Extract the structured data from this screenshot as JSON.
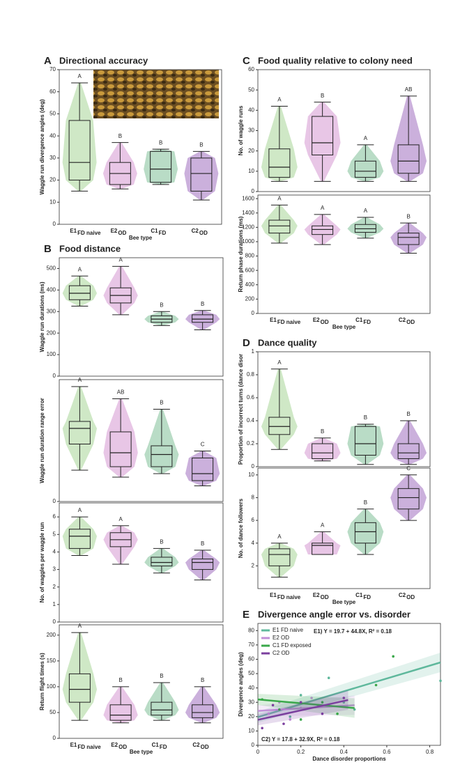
{
  "chart_data": [
    {
      "type": "violin",
      "panel": "A",
      "title": "Directional accuracy",
      "y_label": "Waggle run divergence angles (deg)",
      "x_label": "Bee type",
      "categories": [
        "E1",
        "E2",
        "C1",
        "C2"
      ],
      "category_subscripts": [
        "FD naive",
        "OD",
        "FD",
        "OD"
      ],
      "colors": [
        "#cfe8c6",
        "#e8c6e6",
        "#b9dcc6",
        "#cbb0dc"
      ],
      "ylim": [
        0,
        70
      ],
      "yticks": [
        0,
        10,
        20,
        30,
        40,
        50,
        60,
        70
      ],
      "groups": [
        {
          "min": 15,
          "q1": 20,
          "median": 28,
          "q3": 47,
          "max": 64,
          "letter": "A"
        },
        {
          "min": 16,
          "q1": 18,
          "median": 23,
          "q3": 28,
          "max": 37,
          "letter": "B"
        },
        {
          "min": 18,
          "q1": 19,
          "median": 25,
          "q3": 33,
          "max": 34,
          "letter": "B"
        },
        {
          "min": 11,
          "q1": 15,
          "median": 23,
          "q3": 30,
          "max": 33,
          "letter": "B"
        }
      ]
    },
    {
      "type": "violin",
      "panel": "B",
      "title": "Food distance",
      "y_label": "Waggle run durations (ms)",
      "colors": [
        "#cfe8c6",
        "#e8c6e6",
        "#b9dcc6",
        "#cbb0dc"
      ],
      "ylim": [
        0,
        550
      ],
      "yticks": [
        0,
        100,
        200,
        300,
        400,
        500
      ],
      "groups": [
        {
          "min": 325,
          "q1": 355,
          "median": 385,
          "q3": 420,
          "max": 465,
          "letter": "A"
        },
        {
          "min": 285,
          "q1": 340,
          "median": 375,
          "q3": 410,
          "max": 510,
          "letter": "A"
        },
        {
          "min": 235,
          "q1": 250,
          "median": 265,
          "q3": 280,
          "max": 300,
          "letter": "B"
        },
        {
          "min": 215,
          "q1": 250,
          "median": 265,
          "q3": 285,
          "max": 305,
          "letter": "B"
        }
      ]
    },
    {
      "type": "violin",
      "y_label": "Waggle run duration range error",
      "colors": [
        "#cfe8c6",
        "#e8c6e6",
        "#b9dcc6",
        "#cbb0dc"
      ],
      "ylim": [
        0,
        350
      ],
      "yticks": [
        0
      ],
      "groups": [
        {
          "min": 90,
          "q1": 165,
          "median": 210,
          "q3": 230,
          "max": 330,
          "letter": "A"
        },
        {
          "min": 70,
          "q1": 100,
          "median": 140,
          "q3": 200,
          "max": 295,
          "letter": "AB"
        },
        {
          "min": 80,
          "q1": 100,
          "median": 135,
          "q3": 160,
          "max": 265,
          "letter": "B"
        },
        {
          "min": 45,
          "q1": 60,
          "median": 80,
          "q3": 125,
          "max": 145,
          "letter": "C"
        }
      ]
    },
    {
      "type": "violin",
      "y_label": "No. of waggles per waggle run",
      "colors": [
        "#cfe8c6",
        "#e8c6e6",
        "#b9dcc6",
        "#cbb0dc"
      ],
      "ylim": [
        0,
        6.8
      ],
      "yticks": [
        0,
        1,
        2,
        3,
        4,
        5,
        6
      ],
      "groups": [
        {
          "min": 3.8,
          "q1": 4.2,
          "median": 4.9,
          "q3": 5.3,
          "max": 6.0,
          "letter": "A"
        },
        {
          "min": 3.3,
          "q1": 4.3,
          "median": 4.7,
          "q3": 5.1,
          "max": 5.5,
          "letter": "A"
        },
        {
          "min": 2.8,
          "q1": 3.2,
          "median": 3.4,
          "q3": 3.7,
          "max": 4.2,
          "letter": "B"
        },
        {
          "min": 2.4,
          "q1": 3.0,
          "median": 3.4,
          "q3": 3.6,
          "max": 4.1,
          "letter": "B"
        }
      ]
    },
    {
      "type": "violin",
      "y_label": "Return flight times (s)",
      "x_label": "Bee type",
      "categories": [
        "E1",
        "E2",
        "C1",
        "C2"
      ],
      "category_subscripts": [
        "FD naive",
        "OD",
        "FD",
        "OD"
      ],
      "colors": [
        "#cfe8c6",
        "#e8c6e6",
        "#b9dcc6",
        "#cbb0dc"
      ],
      "ylim": [
        0,
        220
      ],
      "yticks": [
        0,
        50,
        100,
        150,
        200
      ],
      "groups": [
        {
          "min": 35,
          "q1": 70,
          "median": 95,
          "q3": 125,
          "max": 205,
          "letter": "A"
        },
        {
          "min": 30,
          "q1": 35,
          "median": 45,
          "q3": 65,
          "max": 100,
          "letter": "B"
        },
        {
          "min": 35,
          "q1": 45,
          "median": 55,
          "q3": 70,
          "max": 108,
          "letter": "B"
        },
        {
          "min": 30,
          "q1": 40,
          "median": 50,
          "q3": 65,
          "max": 100,
          "letter": "B"
        }
      ]
    },
    {
      "type": "violin",
      "panel": "C",
      "title": "Food quality relative to colony need",
      "y_label": "No. of waggle runs",
      "colors": [
        "#cfe8c6",
        "#e8c6e6",
        "#b9dcc6",
        "#cbb0dc"
      ],
      "ylim": [
        0,
        60
      ],
      "yticks": [
        0,
        10,
        20,
        30,
        40,
        50,
        60
      ],
      "groups": [
        {
          "min": 5,
          "q1": 7,
          "median": 12,
          "q3": 21,
          "max": 42,
          "letter": "A"
        },
        {
          "min": 5,
          "q1": 18,
          "median": 24,
          "q3": 37,
          "max": 44,
          "letter": "B"
        },
        {
          "min": 5,
          "q1": 7,
          "median": 10,
          "q3": 15,
          "max": 23,
          "letter": "A"
        },
        {
          "min": 5,
          "q1": 9,
          "median": 15,
          "q3": 23,
          "max": 47,
          "letter": "AB"
        }
      ]
    },
    {
      "type": "violin",
      "y_label": "Return phase durations (ms)",
      "x_label": "Bee type",
      "categories": [
        "E1",
        "E2",
        "C1",
        "C2"
      ],
      "category_subscripts": [
        "FD naive",
        "OD",
        "FD",
        "OD"
      ],
      "colors": [
        "#cfe8c6",
        "#e8c6e6",
        "#b9dcc6",
        "#cbb0dc"
      ],
      "ylim": [
        0,
        1650
      ],
      "yticks": [
        0,
        200,
        400,
        600,
        800,
        1000,
        1200,
        1400,
        1600
      ],
      "groups": [
        {
          "min": 980,
          "q1": 1120,
          "median": 1220,
          "q3": 1300,
          "max": 1510,
          "letter": "A"
        },
        {
          "min": 960,
          "q1": 1100,
          "median": 1170,
          "q3": 1220,
          "max": 1380,
          "letter": "A"
        },
        {
          "min": 1050,
          "q1": 1130,
          "median": 1180,
          "q3": 1240,
          "max": 1340,
          "letter": "A"
        },
        {
          "min": 840,
          "q1": 960,
          "median": 1060,
          "q3": 1120,
          "max": 1260,
          "letter": "B"
        }
      ]
    },
    {
      "type": "violin",
      "panel": "D",
      "title": "Dance quality",
      "y_label": "Proportion of incorrect turns (dance disor",
      "colors": [
        "#cfe8c6",
        "#e8c6e6",
        "#b9dcc6",
        "#cbb0dc"
      ],
      "ylim": [
        0,
        1.0
      ],
      "yticks": [
        0,
        0.2,
        0.4,
        0.6,
        0.8,
        1.0
      ],
      "groups": [
        {
          "min": 0.15,
          "q1": 0.28,
          "median": 0.35,
          "q3": 0.43,
          "max": 0.85,
          "letter": "A"
        },
        {
          "min": 0.05,
          "q1": 0.07,
          "median": 0.12,
          "q3": 0.2,
          "max": 0.25,
          "letter": "B"
        },
        {
          "min": 0.02,
          "q1": 0.1,
          "median": 0.2,
          "q3": 0.35,
          "max": 0.37,
          "letter": "B"
        },
        {
          "min": 0.02,
          "q1": 0.07,
          "median": 0.12,
          "q3": 0.2,
          "max": 0.4,
          "letter": "B"
        }
      ]
    },
    {
      "type": "violin",
      "y_label": "No. of dance followers",
      "x_label": "Bee type",
      "categories": [
        "E1",
        "E2",
        "C1",
        "C2"
      ],
      "category_subscripts": [
        "FD naive",
        "OD",
        "FD",
        "OD"
      ],
      "colors": [
        "#cfe8c6",
        "#e8c6e6",
        "#b9dcc6",
        "#cbb0dc"
      ],
      "ylim": [
        0,
        10.6
      ],
      "yticks": [
        2,
        4,
        6,
        8,
        10
      ],
      "groups": [
        {
          "min": 1,
          "q1": 2,
          "median": 3,
          "q3": 3.5,
          "max": 4,
          "letter": "A"
        },
        {
          "min": 3,
          "q1": 3,
          "median": 3.8,
          "q3": 4,
          "max": 5,
          "letter": "A"
        },
        {
          "min": 3,
          "q1": 4,
          "median": 5,
          "q3": 5.8,
          "max": 7,
          "letter": "B"
        },
        {
          "min": 6,
          "q1": 7,
          "median": 8,
          "q3": 8.8,
          "max": 10,
          "letter": "C"
        }
      ]
    },
    {
      "type": "scatter",
      "panel": "E",
      "title": "Divergence angle error vs. disorder",
      "y_label": "Divergence angles (deg)",
      "x_label": "Dance disorder proportions",
      "xlim": [
        0,
        0.85
      ],
      "ylim": [
        0,
        85
      ],
      "xticks": [
        0,
        0.2,
        0.4,
        0.6,
        0.8
      ],
      "yticks": [
        0,
        10,
        20,
        30,
        40,
        50,
        60,
        70,
        80
      ],
      "annotations": [
        "E1) Y = 19.7 + 44.8X, R² = 0.18",
        "C2) Y = 17.8 + 32.9X, R² = 0.18"
      ],
      "series": [
        {
          "name": "E1 FD naive",
          "color": "#5fb89c",
          "x": [
            0.15,
            0.2,
            0.28,
            0.33,
            0.4,
            0.45,
            0.85
          ],
          "y": [
            20,
            35,
            28,
            47,
            30,
            25,
            45
          ],
          "line_x": [
            0,
            0.85
          ],
          "line_y": [
            19.7,
            57.8
          ]
        },
        {
          "name": "E2 OD",
          "color": "#c28fd8",
          "x": [
            0.05,
            0.1,
            0.15,
            0.2,
            0.25
          ],
          "y": [
            22,
            30,
            18,
            26,
            33
          ],
          "line_x": [
            0,
            0.45
          ],
          "line_y": [
            24,
            28
          ]
        },
        {
          "name": "C1 FD exposed",
          "color": "#3aa84a",
          "x": [
            0.02,
            0.1,
            0.2,
            0.3,
            0.37,
            0.55,
            0.63
          ],
          "y": [
            32,
            25,
            18,
            30,
            22,
            42,
            62
          ],
          "line_x": [
            0,
            0.45
          ],
          "line_y": [
            32,
            26
          ]
        },
        {
          "name": "C2 OD",
          "color": "#7b3f9e",
          "x": [
            0.02,
            0.07,
            0.12,
            0.2,
            0.3,
            0.4
          ],
          "y": [
            12,
            28,
            15,
            30,
            22,
            33
          ],
          "line_x": [
            0,
            0.42
          ],
          "line_y": [
            17.8,
            31.6
          ]
        }
      ]
    }
  ]
}
